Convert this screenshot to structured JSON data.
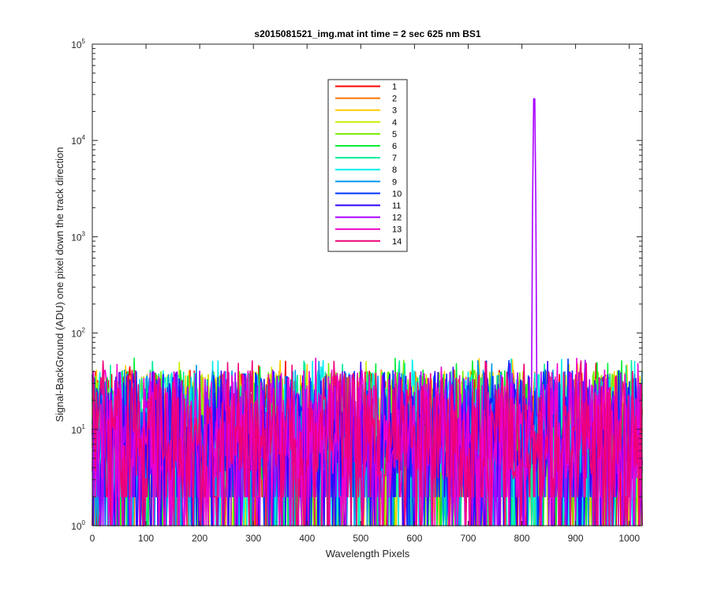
{
  "chart_data": {
    "type": "line",
    "title": "s2015081521_img.mat int time = 2 sec  625 nm BS1",
    "xlabel": "Wavelength Pixels",
    "ylabel": "Signal-BackGround (ADU) one pixel down the track direction",
    "xlim": [
      0,
      1024
    ],
    "ylim": [
      1,
      100000
    ],
    "yscale": "log",
    "x_ticks": [
      0,
      100,
      200,
      300,
      400,
      500,
      600,
      700,
      800,
      900,
      1000
    ],
    "y_ticks": [
      {
        "value": 1,
        "base": "10",
        "exp": "0"
      },
      {
        "value": 10,
        "base": "10",
        "exp": "1"
      },
      {
        "value": 100,
        "base": "10",
        "exp": "2"
      },
      {
        "value": 1000,
        "base": "10",
        "exp": "3"
      },
      {
        "value": 10000,
        "base": "10",
        "exp": "4"
      },
      {
        "value": 100000,
        "base": "10",
        "exp": "5"
      }
    ],
    "grid": false,
    "legend_position": "upper-center",
    "noise_floor_range": [
      1,
      55
    ],
    "peak": {
      "x": 823,
      "y": 37000,
      "series": "12"
    },
    "series": [
      {
        "name": "1",
        "color": "#ff0000"
      },
      {
        "name": "2",
        "color": "#ff7300"
      },
      {
        "name": "3",
        "color": "#ffcc00"
      },
      {
        "name": "4",
        "color": "#ccee00"
      },
      {
        "name": "5",
        "color": "#77ee00"
      },
      {
        "name": "6",
        "color": "#00ee33"
      },
      {
        "name": "7",
        "color": "#00ee99"
      },
      {
        "name": "8",
        "color": "#00eeee"
      },
      {
        "name": "9",
        "color": "#0099ee"
      },
      {
        "name": "10",
        "color": "#0033ff"
      },
      {
        "name": "11",
        "color": "#3300ff"
      },
      {
        "name": "12",
        "color": "#aa00ff"
      },
      {
        "name": "13",
        "color": "#ee00cc"
      },
      {
        "name": "14",
        "color": "#ee0077"
      }
    ]
  }
}
